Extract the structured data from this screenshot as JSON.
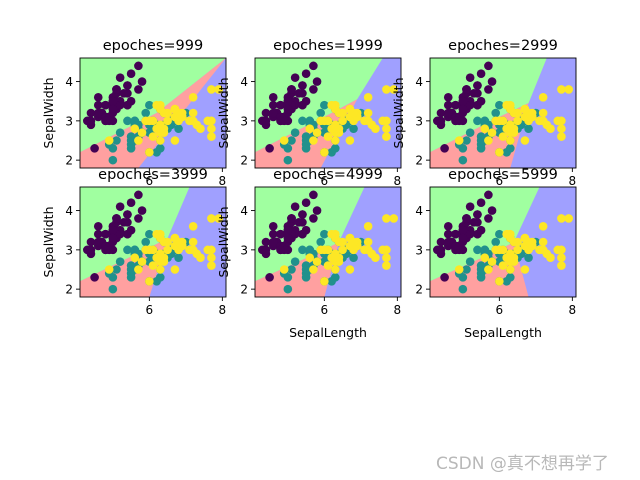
{
  "figure": {
    "watermark": "CSDN @真不想再学了"
  },
  "chart_data": [
    {
      "type": "scatter",
      "title": "epoches=999",
      "xlabel": "",
      "ylabel": "SepalWidth",
      "xlim": [
        4.1,
        8.1
      ],
      "ylim": [
        1.8,
        4.6
      ],
      "xticks": [
        6,
        8
      ],
      "yticks": [
        2,
        3,
        4
      ],
      "grid": false,
      "boundary": {
        "green_red": [
          [
            4.1,
            2.2
          ],
          [
            6.2,
            3.2
          ],
          [
            8.1,
            4.6
          ]
        ],
        "red_blue": [
          [
            5.7,
            1.8
          ],
          [
            8.1,
            4.6
          ]
        ]
      }
    },
    {
      "type": "scatter",
      "title": "epoches=1999",
      "xlabel": "",
      "ylabel": "SepalWidth",
      "xlim": [
        4.1,
        8.1
      ],
      "ylim": [
        1.8,
        4.6
      ],
      "xticks": [
        6,
        8
      ],
      "yticks": [
        2,
        3,
        4
      ],
      "grid": false,
      "boundary": {
        "green_red": [
          [
            4.1,
            2.2
          ],
          [
            6.2,
            3.2
          ],
          [
            6.9,
            3.55
          ]
        ],
        "green_blue": [
          [
            6.9,
            3.55
          ],
          [
            7.6,
            4.6
          ]
        ],
        "red_blue": [
          [
            5.9,
            1.8
          ],
          [
            6.9,
            3.55
          ]
        ]
      }
    },
    {
      "type": "scatter",
      "title": "epoches=2999",
      "xlabel": "",
      "ylabel": "SepalWidth",
      "xlim": [
        4.1,
        8.1
      ],
      "ylim": [
        1.8,
        4.6
      ],
      "xticks": [
        6,
        8
      ],
      "yticks": [
        2,
        3,
        4
      ],
      "grid": false,
      "boundary": {
        "green_red": [
          [
            4.1,
            2.2
          ],
          [
            6.0,
            3.1
          ],
          [
            6.8,
            3.45
          ]
        ],
        "green_blue": [
          [
            6.8,
            3.45
          ],
          [
            7.3,
            4.6
          ]
        ],
        "red_blue": [
          [
            6.3,
            1.8
          ],
          [
            6.8,
            3.45
          ]
        ]
      }
    },
    {
      "type": "scatter",
      "title": "epoches=3999",
      "xlabel": "",
      "ylabel": "SepalWidth",
      "xlim": [
        4.1,
        8.1
      ],
      "ylim": [
        1.8,
        4.6
      ],
      "xticks": [
        6,
        8
      ],
      "yticks": [
        2,
        3,
        4
      ],
      "grid": false,
      "boundary": {
        "green_red": [
          [
            4.1,
            2.2
          ],
          [
            6.0,
            3.05
          ],
          [
            6.5,
            3.3
          ]
        ],
        "green_blue": [
          [
            6.5,
            3.3
          ],
          [
            7.1,
            4.6
          ]
        ],
        "red_blue": [
          [
            6.0,
            1.8
          ],
          [
            6.5,
            3.3
          ]
        ]
      }
    },
    {
      "type": "scatter",
      "title": "epoches=4999",
      "xlabel": "SepalLength",
      "ylabel": "SepalWidth",
      "xlim": [
        4.1,
        8.1
      ],
      "ylim": [
        1.8,
        4.6
      ],
      "xticks": [
        6,
        8
      ],
      "yticks": [
        2,
        3,
        4
      ],
      "grid": false,
      "boundary": {
        "green_red": [
          [
            4.1,
            2.2
          ],
          [
            6.0,
            3.0
          ],
          [
            6.4,
            3.2
          ]
        ],
        "green_blue": [
          [
            6.4,
            3.2
          ],
          [
            7.1,
            4.6
          ]
        ],
        "red_blue": [
          [
            6.0,
            1.8
          ],
          [
            6.4,
            3.2
          ]
        ]
      }
    },
    {
      "type": "scatter",
      "title": "epoches=5999",
      "xlabel": "SepalLength",
      "ylabel": "",
      "xlim": [
        4.1,
        8.1
      ],
      "ylim": [
        1.8,
        4.6
      ],
      "xticks": [
        6,
        8
      ],
      "yticks": [
        2,
        3,
        4
      ],
      "grid": false,
      "boundary": {
        "green_red": [
          [
            4.1,
            2.2
          ],
          [
            6.0,
            3.0
          ],
          [
            6.4,
            3.2
          ]
        ],
        "green_blue": [
          [
            6.4,
            3.2
          ],
          [
            7.1,
            4.6
          ]
        ],
        "red_blue": [
          [
            6.8,
            1.8
          ],
          [
            6.4,
            3.2
          ]
        ]
      }
    }
  ],
  "colors": {
    "region_setosa": "#A0FFA0",
    "region_versicolor": "#FFA0A0",
    "region_virginica": "#A0A0FF",
    "point_setosa": "#440154",
    "point_versicolor": "#21918C",
    "point_virginica": "#FDE725"
  },
  "points": {
    "setosa": [
      [
        5.1,
        3.5
      ],
      [
        4.9,
        3.0
      ],
      [
        4.7,
        3.2
      ],
      [
        4.6,
        3.1
      ],
      [
        5.0,
        3.6
      ],
      [
        5.4,
        3.9
      ],
      [
        4.6,
        3.4
      ],
      [
        5.0,
        3.4
      ],
      [
        4.4,
        2.9
      ],
      [
        4.9,
        3.1
      ],
      [
        5.4,
        3.7
      ],
      [
        4.8,
        3.4
      ],
      [
        4.8,
        3.0
      ],
      [
        4.3,
        3.0
      ],
      [
        5.8,
        4.0
      ],
      [
        5.7,
        4.4
      ],
      [
        5.4,
        3.9
      ],
      [
        5.1,
        3.5
      ],
      [
        5.7,
        3.8
      ],
      [
        5.1,
        3.8
      ],
      [
        5.4,
        3.4
      ],
      [
        5.1,
        3.7
      ],
      [
        4.6,
        3.6
      ],
      [
        5.1,
        3.3
      ],
      [
        4.8,
        3.4
      ],
      [
        5.0,
        3.0
      ],
      [
        5.0,
        3.4
      ],
      [
        5.2,
        3.5
      ],
      [
        5.2,
        3.4
      ],
      [
        4.7,
        3.2
      ],
      [
        4.8,
        3.1
      ],
      [
        5.4,
        3.4
      ],
      [
        5.2,
        4.1
      ],
      [
        5.5,
        4.2
      ],
      [
        4.9,
        3.1
      ],
      [
        5.0,
        3.2
      ],
      [
        5.5,
        3.5
      ],
      [
        4.4,
        3.0
      ],
      [
        5.1,
        3.4
      ],
      [
        5.0,
        3.5
      ],
      [
        4.5,
        2.3
      ],
      [
        4.4,
        3.2
      ],
      [
        5.0,
        3.5
      ],
      [
        5.1,
        3.8
      ],
      [
        4.8,
        3.0
      ],
      [
        5.1,
        3.8
      ],
      [
        4.6,
        3.2
      ],
      [
        5.3,
        3.7
      ],
      [
        5.0,
        3.3
      ]
    ],
    "versicolor": [
      [
        7.0,
        3.2
      ],
      [
        6.4,
        3.2
      ],
      [
        6.9,
        3.1
      ],
      [
        5.5,
        2.3
      ],
      [
        6.5,
        2.8
      ],
      [
        5.7,
        2.8
      ],
      [
        6.3,
        3.3
      ],
      [
        4.9,
        2.4
      ],
      [
        6.6,
        2.9
      ],
      [
        5.2,
        2.7
      ],
      [
        5.0,
        2.0
      ],
      [
        5.9,
        3.0
      ],
      [
        6.0,
        2.2
      ],
      [
        6.1,
        2.9
      ],
      [
        5.6,
        2.9
      ],
      [
        6.7,
        3.1
      ],
      [
        5.6,
        3.0
      ],
      [
        5.8,
        2.7
      ],
      [
        6.2,
        2.2
      ],
      [
        5.6,
        2.5
      ],
      [
        5.9,
        3.2
      ],
      [
        6.1,
        2.8
      ],
      [
        6.3,
        2.5
      ],
      [
        6.4,
        2.9
      ],
      [
        6.6,
        3.0
      ],
      [
        6.8,
        2.8
      ],
      [
        6.7,
        3.0
      ],
      [
        6.0,
        2.9
      ],
      [
        5.7,
        2.6
      ],
      [
        5.5,
        2.4
      ],
      [
        5.8,
        2.7
      ],
      [
        6.0,
        2.7
      ],
      [
        5.4,
        3.0
      ],
      [
        6.0,
        3.4
      ],
      [
        6.7,
        3.1
      ],
      [
        6.3,
        2.3
      ],
      [
        5.6,
        3.0
      ],
      [
        5.5,
        2.5
      ],
      [
        5.5,
        2.6
      ],
      [
        6.1,
        3.0
      ],
      [
        5.0,
        2.3
      ],
      [
        5.7,
        2.9
      ],
      [
        6.2,
        2.9
      ],
      [
        5.1,
        2.5
      ]
    ],
    "virginica": [
      [
        6.3,
        3.3
      ],
      [
        5.8,
        2.7
      ],
      [
        7.1,
        3.0
      ],
      [
        6.3,
        2.9
      ],
      [
        6.5,
        3.0
      ],
      [
        7.6,
        3.0
      ],
      [
        7.3,
        2.9
      ],
      [
        6.7,
        2.5
      ],
      [
        7.2,
        3.6
      ],
      [
        6.5,
        3.2
      ],
      [
        6.4,
        2.7
      ],
      [
        6.8,
        3.0
      ],
      [
        5.7,
        2.5
      ],
      [
        6.4,
        3.2
      ],
      [
        7.7,
        3.8
      ],
      [
        7.7,
        2.6
      ],
      [
        6.0,
        2.2
      ],
      [
        6.9,
        3.2
      ],
      [
        5.6,
        2.8
      ],
      [
        7.7,
        2.8
      ],
      [
        6.3,
        2.7
      ],
      [
        6.7,
        3.3
      ],
      [
        7.2,
        3.2
      ],
      [
        6.2,
        2.8
      ],
      [
        6.1,
        3.0
      ],
      [
        6.4,
        2.8
      ],
      [
        7.2,
        3.0
      ],
      [
        7.4,
        2.8
      ],
      [
        7.9,
        3.8
      ],
      [
        6.3,
        2.8
      ],
      [
        6.1,
        2.6
      ],
      [
        7.7,
        3.0
      ],
      [
        6.3,
        3.4
      ],
      [
        6.0,
        3.0
      ],
      [
        6.9,
        3.1
      ],
      [
        6.7,
        3.1
      ],
      [
        6.9,
        3.1
      ],
      [
        6.8,
        3.2
      ],
      [
        6.7,
        3.3
      ],
      [
        6.3,
        2.5
      ],
      [
        6.2,
        3.4
      ],
      [
        5.9,
        3.0
      ],
      [
        4.9,
        2.5
      ]
    ]
  }
}
